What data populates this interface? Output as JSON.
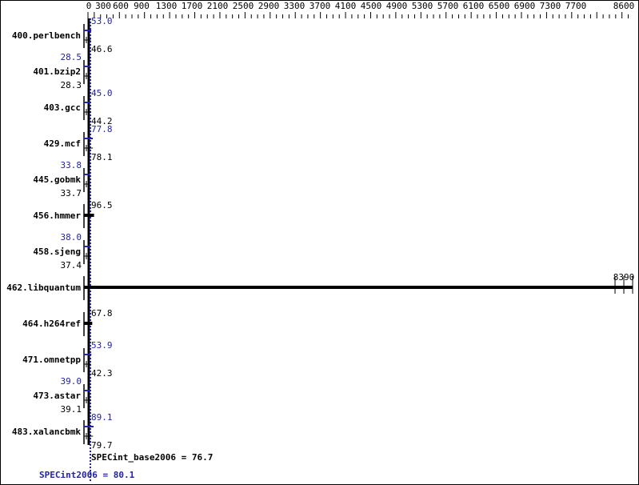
{
  "chart_data": {
    "type": "bar",
    "orientation": "horizontal",
    "xlim": [
      0,
      8600
    ],
    "x_ticks": [
      "0",
      "300",
      "600",
      "900",
      "1300",
      "1700",
      "2100",
      "2500",
      "2900",
      "3300",
      "3700",
      "4100",
      "4500",
      "4900",
      "5300",
      "5700",
      "6100",
      "6500",
      "6900",
      "7300",
      "7700",
      "8600"
    ],
    "categories": [
      "400.perlbench",
      "401.bzip2",
      "403.gcc",
      "429.mcf",
      "445.gobmk",
      "456.hmmer",
      "458.sjeng",
      "462.libquantum",
      "464.h264ref",
      "471.omnetpp",
      "473.astar",
      "483.xalancbmk"
    ],
    "series": [
      {
        "name": "SPECint2006",
        "color": "#2222aa",
        "values": [
          53.0,
          28.5,
          45.0,
          77.8,
          33.8,
          null,
          38.0,
          null,
          null,
          53.9,
          39.0,
          89.1
        ]
      },
      {
        "name": "SPECint_base2006",
        "color": "#000000",
        "values": [
          46.6,
          28.3,
          44.2,
          78.1,
          33.7,
          96.5,
          37.4,
          8390,
          67.8,
          42.3,
          39.1,
          79.7
        ]
      }
    ],
    "labels": {
      "peak": [
        "53.0",
        "28.5",
        "45.0",
        "77.8",
        "33.8",
        "",
        "38.0",
        "",
        "",
        "53.9",
        "39.0",
        "89.1"
      ],
      "base": [
        "46.6",
        "28.3",
        "44.2",
        "78.1",
        "33.7",
        "96.5",
        "37.4",
        "8390",
        "67.8",
        "42.3",
        "39.1",
        "79.7"
      ]
    },
    "summary": {
      "base_label": "SPECint_base2006 = 76.7",
      "base_value": 76.7,
      "peak_label": "SPECint2006 = 80.1",
      "peak_value": 80.1
    }
  }
}
